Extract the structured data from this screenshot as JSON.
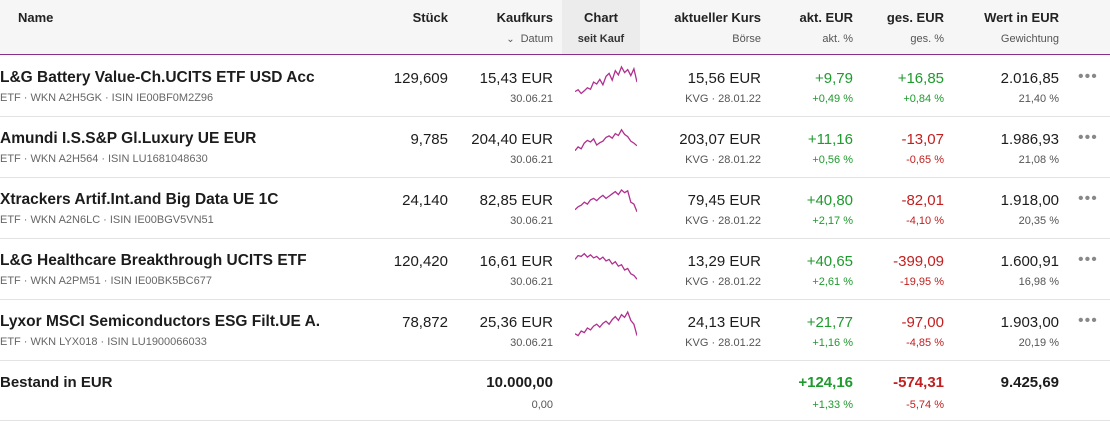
{
  "headers": {
    "name": "Name",
    "stueck": "Stück",
    "kaufkurs": "Kaufkurs",
    "kaufkurs_sub": "Datum",
    "chart": "Chart",
    "chart_sub": "seit Kauf",
    "aktueller_kurs": "aktueller Kurs",
    "aktueller_kurs_sub": "Börse",
    "akt_eur": "akt. EUR",
    "akt_eur_sub": "akt. %",
    "ges_eur": "ges. EUR",
    "ges_eur_sub": "ges. %",
    "wert": "Wert in EUR",
    "wert_sub": "Gewichtung"
  },
  "rows": [
    {
      "name": "L&G Battery Value-Ch.UCITS ETF USD Acc",
      "type": "ETF",
      "wkn": "WKN A2H5GK",
      "isin": "ISIN IE00BF0M2Z96",
      "stueck": "129,609",
      "kaufkurs": "15,43 EUR",
      "kaufdatum": "30.06.21",
      "kurs": "15,56 EUR",
      "boerse": "KVG · 28.01.22",
      "akt_eur": "+9,79",
      "akt_pct": "+0,49 %",
      "ges_eur": "+16,85",
      "ges_pct": "+0,84 %",
      "wert": "2.016,85",
      "gewichtung": "21,40 %",
      "spark": [
        0.3,
        0.35,
        0.25,
        0.32,
        0.4,
        0.36,
        0.55,
        0.5,
        0.62,
        0.48,
        0.7,
        0.78,
        0.6,
        0.85,
        0.74,
        0.95,
        0.8,
        0.88,
        0.72,
        0.9,
        0.55
      ]
    },
    {
      "name": "Amundi I.S.S&P Gl.Luxury UE EUR",
      "type": "ETF",
      "wkn": "WKN A2H564",
      "isin": "ISIN LU1681048630",
      "stueck": "9,785",
      "kaufkurs": "204,40 EUR",
      "kaufdatum": "30.06.21",
      "kurs": "203,07 EUR",
      "boerse": "KVG · 28.01.22",
      "akt_eur": "+11,16",
      "akt_pct": "+0,56 %",
      "ges_eur": "-13,07",
      "ges_pct": "-0,65 %",
      "wert": "1.986,93",
      "gewichtung": "21,08 %",
      "spark": [
        0.35,
        0.45,
        0.4,
        0.55,
        0.62,
        0.58,
        0.66,
        0.5,
        0.56,
        0.6,
        0.7,
        0.74,
        0.68,
        0.8,
        0.75,
        0.9,
        0.78,
        0.72,
        0.6,
        0.55,
        0.48
      ]
    },
    {
      "name": "Xtrackers Artif.Int.and Big Data UE 1C",
      "type": "ETF",
      "wkn": "WKN A2N6LC",
      "isin": "ISIN IE00BGV5VN51",
      "stueck": "24,140",
      "kaufkurs": "82,85 EUR",
      "kaufdatum": "30.06.21",
      "kurs": "79,45 EUR",
      "boerse": "KVG · 28.01.22",
      "akt_eur": "+40,80",
      "akt_pct": "+2,17 %",
      "ges_eur": "-82,01",
      "ges_pct": "-4,10 %",
      "wert": "1.918,00",
      "gewichtung": "20,35 %",
      "spark": [
        0.4,
        0.48,
        0.52,
        0.6,
        0.55,
        0.66,
        0.7,
        0.64,
        0.72,
        0.78,
        0.7,
        0.76,
        0.82,
        0.88,
        0.8,
        0.92,
        0.85,
        0.9,
        0.6,
        0.55,
        0.35
      ]
    },
    {
      "name": "L&G Healthcare Breakthrough UCITS ETF",
      "type": "ETF",
      "wkn": "WKN A2PM51",
      "isin": "ISIN IE00BK5BC677",
      "stueck": "120,420",
      "kaufkurs": "16,61 EUR",
      "kaufdatum": "30.06.21",
      "kurs": "13,29 EUR",
      "boerse": "KVG · 28.01.22",
      "akt_eur": "+40,65",
      "akt_pct": "+2,61 %",
      "ges_eur": "-399,09",
      "ges_pct": "-19,95 %",
      "wert": "1.600,91",
      "gewichtung": "16,98 %",
      "spark": [
        0.7,
        0.8,
        0.78,
        0.85,
        0.76,
        0.82,
        0.74,
        0.78,
        0.7,
        0.76,
        0.66,
        0.7,
        0.58,
        0.64,
        0.52,
        0.56,
        0.42,
        0.46,
        0.32,
        0.28,
        0.18
      ]
    },
    {
      "name": "Lyxor MSCI Semiconductors ESG Filt.UE A.",
      "type": "ETF",
      "wkn": "WKN LYX018",
      "isin": "ISIN LU1900066033",
      "stueck": "78,872",
      "kaufkurs": "25,36 EUR",
      "kaufdatum": "30.06.21",
      "kurs": "24,13 EUR",
      "boerse": "KVG · 28.01.22",
      "akt_eur": "+21,77",
      "akt_pct": "+1,16 %",
      "ges_eur": "-97,00",
      "ges_pct": "-4,85 %",
      "wert": "1.903,00",
      "gewichtung": "20,19 %",
      "spark": [
        0.35,
        0.3,
        0.42,
        0.38,
        0.5,
        0.45,
        0.55,
        0.6,
        0.52,
        0.62,
        0.68,
        0.6,
        0.72,
        0.8,
        0.7,
        0.85,
        0.78,
        0.92,
        0.7,
        0.6,
        0.3
      ]
    }
  ],
  "total": {
    "label": "Bestand in EUR",
    "kaufkurs": "10.000,00",
    "kaufkurs_sub": "0,00",
    "akt_eur": "+124,16",
    "akt_pct": "+1,33 %",
    "ges_eur": "-574,31",
    "ges_pct": "-5,74 %",
    "wert": "9.425,69"
  },
  "colors": {
    "positive": "#1f9a2e",
    "negative": "#c0201f",
    "spark": "#b0308f",
    "accent": "#8a2c8f"
  },
  "icons": {
    "more": "more-dots-icon",
    "sort": "chevron-down-icon"
  }
}
